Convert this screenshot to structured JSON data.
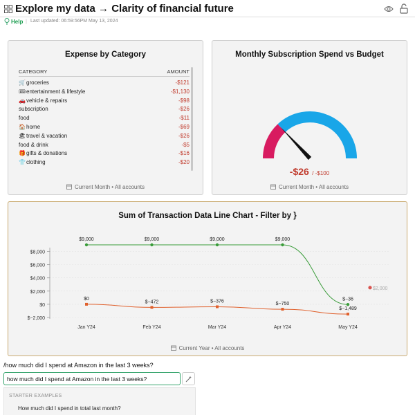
{
  "header": {
    "title": "Explore my data → Clarity of financial future",
    "help_label": "Help",
    "separator": "|",
    "last_updated": "Last updated: 06:59:56PM May 13, 2024"
  },
  "expense_card": {
    "title": "Expense by Category",
    "col_category": "CATEGORY",
    "col_amount": "AMOUNT",
    "rows": [
      {
        "emoji": "🛒",
        "name": "groceries",
        "amount": "-$121"
      },
      {
        "emoji": "🎟",
        "name": "entertainment & lifestyle",
        "amount": "-$1,130"
      },
      {
        "emoji": "🚗",
        "name": "vehicle & repairs",
        "amount": "-$98"
      },
      {
        "emoji": "",
        "name": "subscription",
        "amount": "-$26"
      },
      {
        "emoji": "",
        "name": "food",
        "amount": "-$11"
      },
      {
        "emoji": "🏠",
        "name": "home",
        "amount": "-$69"
      },
      {
        "emoji": "🏖",
        "name": "travel & vacation",
        "amount": "-$26"
      },
      {
        "emoji": "",
        "name": "food & drink",
        "amount": "-$5"
      },
      {
        "emoji": "🎁",
        "name": "gifts & donations",
        "amount": "-$16"
      },
      {
        "emoji": "👕",
        "name": "clothing",
        "amount": "-$20"
      }
    ],
    "footer": "Current Month • All accounts"
  },
  "gauge_card": {
    "title": "Monthly Subscription Spend vs Budget",
    "value": "-$26",
    "budget": "/ -$100",
    "spend_fraction": 0.26,
    "color_spent": "#d81b60",
    "color_remaining": "#19a6e8",
    "footer": "Current Month • All accounts"
  },
  "line_card": {
    "title": "Sum of Transaction Data Line Chart - Filter by }",
    "footer": "Current Year • All accounts",
    "chart_data": {
      "type": "line",
      "title": "Sum of Transaction Data Line Chart - Filter by }",
      "categories": [
        "Jan Y24",
        "Feb Y24",
        "Mar Y24",
        "Apr Y24",
        "May Y24"
      ],
      "y_ticks": [
        8000,
        6000,
        4000,
        2000,
        0,
        -2000
      ],
      "y_tick_labels": [
        "$8,000",
        "$6,000",
        "$4,000",
        "$2,000",
        "$0",
        "$−2,000"
      ],
      "ylim": [
        -2000,
        9000
      ],
      "series": [
        {
          "color": "#3a9c3a",
          "values": [
            9000,
            9000,
            9000,
            9000,
            -36
          ],
          "labels": [
            "$9,000",
            "$9,000",
            "$9,000",
            "$9,000",
            "$−36"
          ]
        },
        {
          "color": "#e0602c",
          "values": [
            0,
            -472,
            -376,
            -750,
            -1489
          ],
          "labels": [
            "$0",
            "$−472",
            "$−376",
            "$−750",
            "$−1,489"
          ]
        }
      ],
      "reference": {
        "value": 2000,
        "label": "$2,000",
        "color": "#d9534f"
      },
      "grid": true
    }
  },
  "query": {
    "echo": "/how much did I spend at Amazon in the last 3 weeks?",
    "value": "how much did I spend at Amazon in the last 3 weeks?",
    "examples_header": "STARTER EXAMPLES",
    "examples": [
      "How much did I spend in total last month?"
    ]
  }
}
